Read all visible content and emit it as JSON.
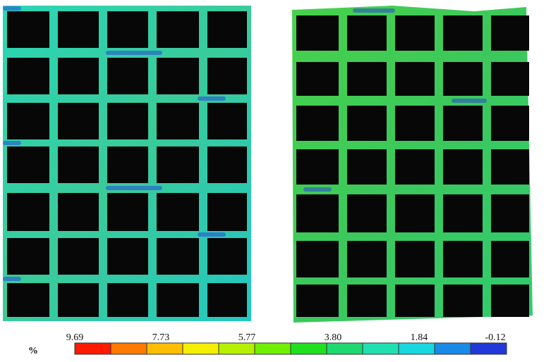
{
  "colorbar": {
    "unit": "%",
    "tick_labels": [
      "9.69",
      "7.73",
      "5.77",
      "3.80",
      "1.84",
      "-0.12"
    ],
    "range": [
      9.69,
      -0.12
    ],
    "segments": 12,
    "colors": [
      "#ff1a00",
      "#ff7a00",
      "#ffbe00",
      "#f4f000",
      "#b6f000",
      "#6ef000",
      "#20e020",
      "#1ed870",
      "#20e0b0",
      "#18d8e0",
      "#1a8ae8",
      "#2238d8"
    ]
  },
  "panels": [
    {
      "name": "left",
      "grid": {
        "cols": 5,
        "rows": 7
      },
      "strut_color": "#2ed3a6",
      "highlight_color": "#2a46d8",
      "cell_color": "#070707"
    },
    {
      "name": "right",
      "grid": {
        "cols": 5,
        "rows": 7
      },
      "strut_color": "#3ecf52",
      "highlight_color": "#2a46d8",
      "cell_color": "#070707"
    }
  ]
}
